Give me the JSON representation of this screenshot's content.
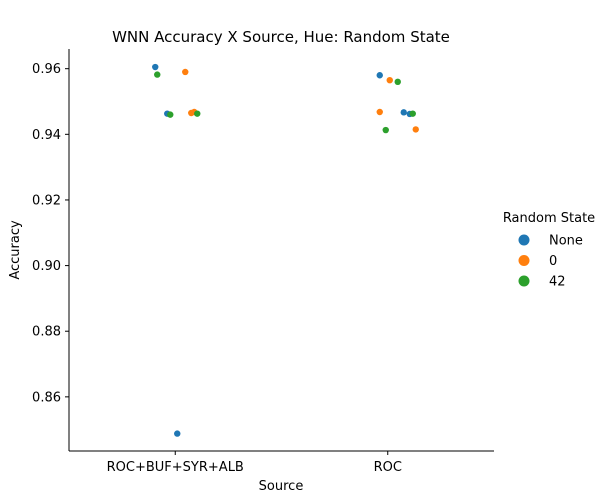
{
  "chart_data": {
    "type": "scatter",
    "title": "WNN Accuracy X Source, Hue: Random State",
    "xlabel": "Source",
    "ylabel": "Accuracy",
    "categories": [
      "ROC+BUF+SYR+ALB",
      "ROC"
    ],
    "ylim": [
      0.8435,
      0.966
    ],
    "yticks": [
      0.86,
      0.88,
      0.9,
      0.92,
      0.94,
      0.96
    ],
    "ytick_labels": [
      "0.86",
      "0.88",
      "0.90",
      "0.92",
      "0.94",
      "0.96"
    ],
    "grid": false,
    "legend": {
      "title": "Random State",
      "placement": "right"
    },
    "series": [
      {
        "name": "None",
        "color": "#1f77b4",
        "points": [
          {
            "category": "ROC+BUF+SYR+ALB",
            "y": 0.9605
          },
          {
            "category": "ROC+BUF+SYR+ALB",
            "y": 0.9463
          },
          {
            "category": "ROC+BUF+SYR+ALB",
            "y": 0.8488
          },
          {
            "category": "ROC",
            "y": 0.958
          },
          {
            "category": "ROC",
            "y": 0.9462
          },
          {
            "category": "ROC",
            "y": 0.9467
          }
        ]
      },
      {
        "name": "0",
        "color": "#ff7f0e",
        "points": [
          {
            "category": "ROC+BUF+SYR+ALB",
            "y": 0.959
          },
          {
            "category": "ROC+BUF+SYR+ALB",
            "y": 0.9465
          },
          {
            "category": "ROC+BUF+SYR+ALB",
            "y": 0.9468
          },
          {
            "category": "ROC",
            "y": 0.9565
          },
          {
            "category": "ROC",
            "y": 0.9468
          },
          {
            "category": "ROC",
            "y": 0.9415
          }
        ]
      },
      {
        "name": "42",
        "color": "#2ca02c",
        "points": [
          {
            "category": "ROC+BUF+SYR+ALB",
            "y": 0.9582
          },
          {
            "category": "ROC+BUF+SYR+ALB",
            "y": 0.946
          },
          {
            "category": "ROC+BUF+SYR+ALB",
            "y": 0.9463
          },
          {
            "category": "ROC",
            "y": 0.956
          },
          {
            "category": "ROC",
            "y": 0.9413
          },
          {
            "category": "ROC",
            "y": 0.9463
          }
        ]
      }
    ]
  }
}
